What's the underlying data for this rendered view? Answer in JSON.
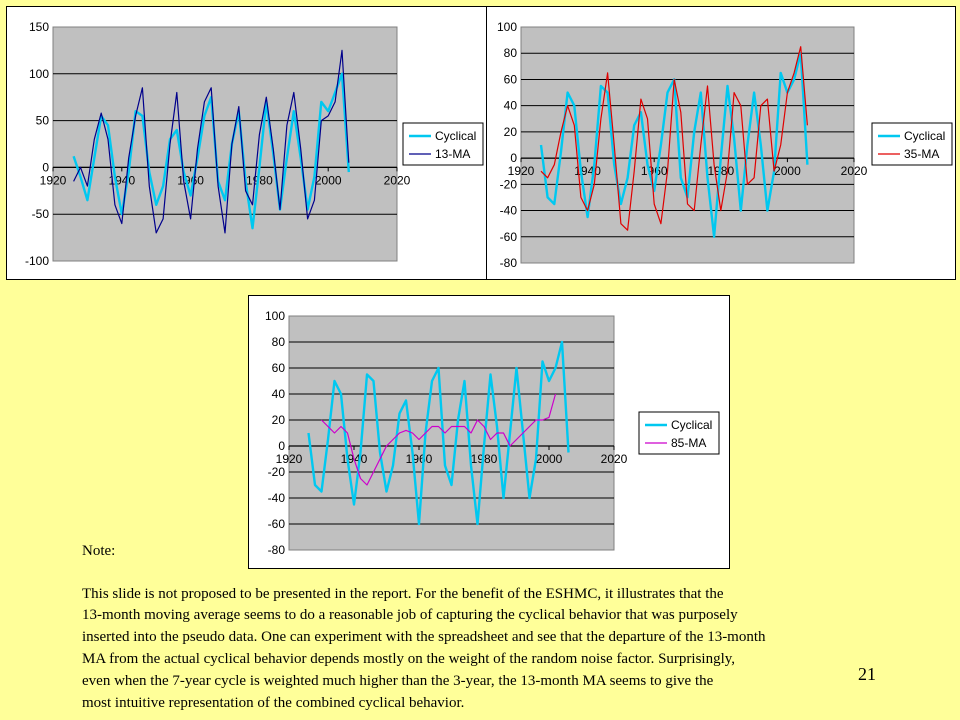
{
  "chart_data": [
    {
      "type": "line",
      "title": "",
      "x": [
        1926,
        1928,
        1930,
        1932,
        1934,
        1936,
        1938,
        1940,
        1942,
        1944,
        1946,
        1948,
        1950,
        1952,
        1954,
        1956,
        1958,
        1960,
        1962,
        1964,
        1966,
        1968,
        1970,
        1972,
        1974,
        1976,
        1978,
        1980,
        1982,
        1984,
        1986,
        1988,
        1990,
        1992,
        1994,
        1996,
        1998,
        2000,
        2002,
        2004,
        2006
      ],
      "xlim": [
        1920,
        2020
      ],
      "ylim": [
        -100,
        150
      ],
      "xticks": [
        "1920",
        "1940",
        "1960",
        "1980",
        "2000",
        "2020"
      ],
      "yticks": [
        "-100",
        "-50",
        "0",
        "50",
        "100",
        "150"
      ],
      "grid": true,
      "legend_position": "right",
      "series": [
        {
          "name": "Cyclical",
          "color": "#00C8F0",
          "values": [
            12,
            -10,
            -35,
            10,
            55,
            45,
            -10,
            -50,
            -5,
            60,
            55,
            -5,
            -40,
            -20,
            30,
            40,
            -5,
            -30,
            10,
            55,
            75,
            -15,
            -35,
            25,
            60,
            -15,
            -65,
            0,
            70,
            15,
            -45,
            10,
            60,
            10,
            -45,
            -10,
            70,
            60,
            80,
            100,
            -5
          ]
        },
        {
          "name": "13-MA",
          "color": "#00008B",
          "values": [
            -15,
            0,
            -20,
            30,
            58,
            30,
            -40,
            -60,
            10,
            55,
            85,
            -20,
            -70,
            -55,
            25,
            80,
            -15,
            -55,
            20,
            70,
            85,
            -20,
            -70,
            25,
            65,
            -25,
            -40,
            35,
            75,
            20,
            -45,
            45,
            80,
            20,
            -55,
            -35,
            50,
            55,
            70,
            125,
            5
          ]
        }
      ]
    },
    {
      "type": "line",
      "title": "",
      "x": [
        1926,
        1928,
        1930,
        1932,
        1934,
        1936,
        1938,
        1940,
        1942,
        1944,
        1946,
        1948,
        1950,
        1952,
        1954,
        1956,
        1958,
        1960,
        1962,
        1964,
        1966,
        1968,
        1970,
        1972,
        1974,
        1976,
        1978,
        1980,
        1982,
        1984,
        1986,
        1988,
        1990,
        1992,
        1994,
        1996,
        1998,
        2000,
        2002,
        2004,
        2006
      ],
      "xlim": [
        1920,
        2020
      ],
      "ylim": [
        -80,
        100
      ],
      "xticks": [
        "1920",
        "1940",
        "1960",
        "1980",
        "2000",
        "2020"
      ],
      "yticks": [
        "-80",
        "-60",
        "-40",
        "-20",
        "0",
        "20",
        "40",
        "60",
        "80",
        "100"
      ],
      "grid": true,
      "legend_position": "right",
      "series": [
        {
          "name": "Cyclical",
          "color": "#00C8F0",
          "values": [
            10,
            -30,
            -35,
            5,
            50,
            40,
            -10,
            -45,
            -5,
            55,
            50,
            -5,
            -35,
            -15,
            25,
            35,
            -5,
            -25,
            10,
            50,
            60,
            -15,
            -30,
            20,
            50,
            -15,
            -60,
            0,
            55,
            15,
            -40,
            10,
            50,
            10,
            -40,
            -10,
            65,
            50,
            60,
            80,
            -5
          ]
        },
        {
          "name": "35-MA",
          "color": "#E00000",
          "values": [
            -10,
            -15,
            -5,
            20,
            40,
            25,
            -30,
            -40,
            -20,
            30,
            65,
            10,
            -50,
            -55,
            -10,
            45,
            30,
            -35,
            -50,
            -10,
            60,
            35,
            -35,
            -40,
            10,
            55,
            -5,
            -40,
            -10,
            50,
            40,
            -20,
            -15,
            40,
            45,
            -10,
            10,
            50,
            65,
            85,
            25
          ]
        }
      ]
    },
    {
      "type": "line",
      "title": "",
      "x": [
        1926,
        1928,
        1930,
        1932,
        1934,
        1936,
        1938,
        1940,
        1942,
        1944,
        1946,
        1948,
        1950,
        1952,
        1954,
        1956,
        1958,
        1960,
        1962,
        1964,
        1966,
        1968,
        1970,
        1972,
        1974,
        1976,
        1978,
        1980,
        1982,
        1984,
        1986,
        1988,
        1990,
        1992,
        1994,
        1996,
        1998,
        2000,
        2002,
        2004,
        2006
      ],
      "xlim": [
        1920,
        2020
      ],
      "ylim": [
        -80,
        100
      ],
      "xticks": [
        "1920",
        "1940",
        "1960",
        "1980",
        "2000",
        "2020"
      ],
      "yticks": [
        "-80",
        "-60",
        "-40",
        "-20",
        "0",
        "20",
        "40",
        "60",
        "80",
        "100"
      ],
      "grid": true,
      "legend_position": "right",
      "series": [
        {
          "name": "Cyclical",
          "color": "#00C8F0",
          "values": [
            10,
            -30,
            -35,
            5,
            50,
            40,
            -10,
            -45,
            -5,
            55,
            50,
            -5,
            -35,
            -15,
            25,
            35,
            -5,
            -60,
            10,
            50,
            60,
            -15,
            -30,
            20,
            50,
            -15,
            -60,
            0,
            55,
            15,
            -40,
            10,
            60,
            10,
            -40,
            -10,
            65,
            50,
            60,
            80,
            -5
          ]
        },
        {
          "name": "85-MA",
          "color": "#CC00CC",
          "values": [
            null,
            null,
            20,
            15,
            10,
            15,
            10,
            -10,
            -25,
            -30,
            -20,
            -10,
            0,
            5,
            10,
            12,
            10,
            5,
            10,
            15,
            15,
            10,
            15,
            15,
            15,
            10,
            20,
            15,
            5,
            10,
            10,
            0,
            5,
            10,
            15,
            20,
            20,
            22,
            40,
            null,
            null
          ]
        }
      ]
    }
  ],
  "note": {
    "heading": "Note:",
    "lines": [
      "This slide is not proposed to be presented in the report.  For the benefit of the ESHMC, it illustrates that the",
      "13-month moving average seems to do a reasonable job of capturing the cyclical behavior that was purposely",
      " inserted into the pseudo data.  One can experiment with the spreadsheet and see that the departure of the 13-month",
      "MA from the actual cyclical behavior depends mostly on the weight of the random noise factor.  Surprisingly,",
      "even when the 7-year cycle is weighted much higher than the 3-year, the 13-month MA seems to give the",
      "most intuitive representation of the combined cyclical behavior."
    ]
  },
  "slide_number": "21"
}
